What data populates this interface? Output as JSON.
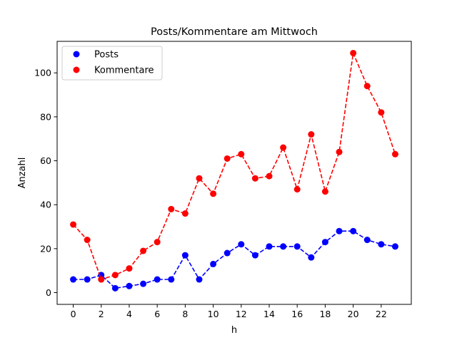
{
  "chart_data": {
    "type": "line",
    "title": "Posts/Kommentare am Mittwoch",
    "xlabel": "h",
    "ylabel": "Anzahl",
    "x": [
      0,
      1,
      2,
      3,
      4,
      5,
      6,
      7,
      8,
      9,
      10,
      11,
      12,
      13,
      14,
      15,
      16,
      17,
      18,
      19,
      20,
      21,
      22,
      23
    ],
    "xlim": [
      -1.15,
      24.15
    ],
    "ylim": [
      -5.35,
      114.35
    ],
    "xticks": [
      0,
      2,
      4,
      6,
      8,
      10,
      12,
      14,
      16,
      18,
      20,
      22
    ],
    "yticks": [
      0,
      20,
      40,
      60,
      80,
      100
    ],
    "grid": false,
    "legend_position": "top-left",
    "series": [
      {
        "name": "Posts",
        "color": "#0000ff",
        "line_style": "dashed",
        "marker": "circle",
        "values": [
          6,
          6,
          8,
          2,
          3,
          4,
          6,
          6,
          17,
          6,
          13,
          18,
          22,
          17,
          21,
          21,
          21,
          16,
          23,
          28,
          28,
          24,
          22,
          21
        ]
      },
      {
        "name": "Kommentare",
        "color": "#ff0000",
        "line_style": "dashed",
        "marker": "circle",
        "values": [
          31,
          24,
          6,
          8,
          11,
          19,
          23,
          38,
          36,
          52,
          45,
          61,
          63,
          52,
          53,
          66,
          47,
          72,
          46,
          64,
          109,
          94,
          82,
          63
        ]
      }
    ]
  }
}
